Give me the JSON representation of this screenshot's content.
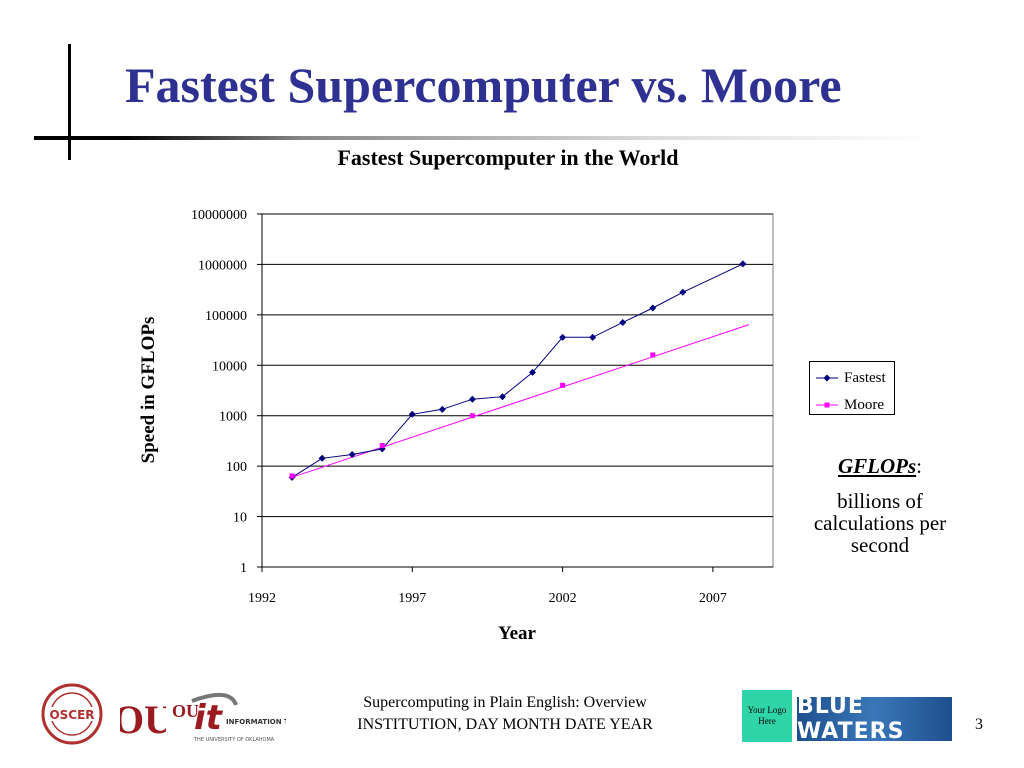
{
  "slide": {
    "title": "Fastest Supercomputer vs. Moore",
    "page_number": "3"
  },
  "chart_data": {
    "type": "line",
    "title": "Fastest Supercomputer in the World",
    "xlabel": "Year",
    "ylabel": "Speed in GFLOPs",
    "yscale": "log",
    "xlim": [
      1992,
      2009
    ],
    "ylim": [
      1,
      10000000
    ],
    "x_ticks": [
      1992,
      1997,
      2002,
      2007
    ],
    "y_ticks": [
      "1",
      "10",
      "100",
      "1000",
      "10000",
      "100000",
      "1000000",
      "10000000"
    ],
    "grid": "horizontal",
    "legend_position": "right",
    "series": [
      {
        "name": "Fastest",
        "color": "#000080",
        "marker": "diamond",
        "points": [
          [
            1993,
            60
          ],
          [
            1994,
            143
          ],
          [
            1995,
            170
          ],
          [
            1996,
            220
          ],
          [
            1997,
            1068
          ],
          [
            1998,
            1338
          ],
          [
            1999,
            2121
          ],
          [
            2000,
            2379
          ],
          [
            2001,
            7226
          ],
          [
            2002,
            35860
          ],
          [
            2003,
            35860
          ],
          [
            2004,
            70720
          ],
          [
            2005,
            136800
          ],
          [
            2006,
            280600
          ],
          [
            2008,
            1026000
          ]
        ]
      },
      {
        "name": "Moore",
        "color": "#ff00ff",
        "marker": "square",
        "points": [
          [
            1993,
            64
          ],
          [
            1996,
            256
          ],
          [
            1999,
            1000
          ],
          [
            2002,
            4000
          ],
          [
            2005,
            16000
          ]
        ],
        "line": [
          [
            1993,
            60
          ],
          [
            2008.2,
            64000
          ]
        ]
      }
    ]
  },
  "definition": {
    "term": "GFLOPs",
    "colon": ":",
    "text_lines": [
      "billions of",
      "calculations per",
      "second"
    ]
  },
  "footer": {
    "line1": "Supercomputing in Plain English: Overview",
    "line2": "INSTITUTION, DAY MONTH DATE YEAR"
  },
  "logos": {
    "oscer": "OSCER",
    "ou": "OU",
    "it_name": "INFORMATION TECHNOLOGY",
    "it_sub": "THE UNIVERSITY OF OKLAHOMA",
    "your_logo": "Your Logo Here",
    "blue_waters": "BLUE WATERS"
  }
}
